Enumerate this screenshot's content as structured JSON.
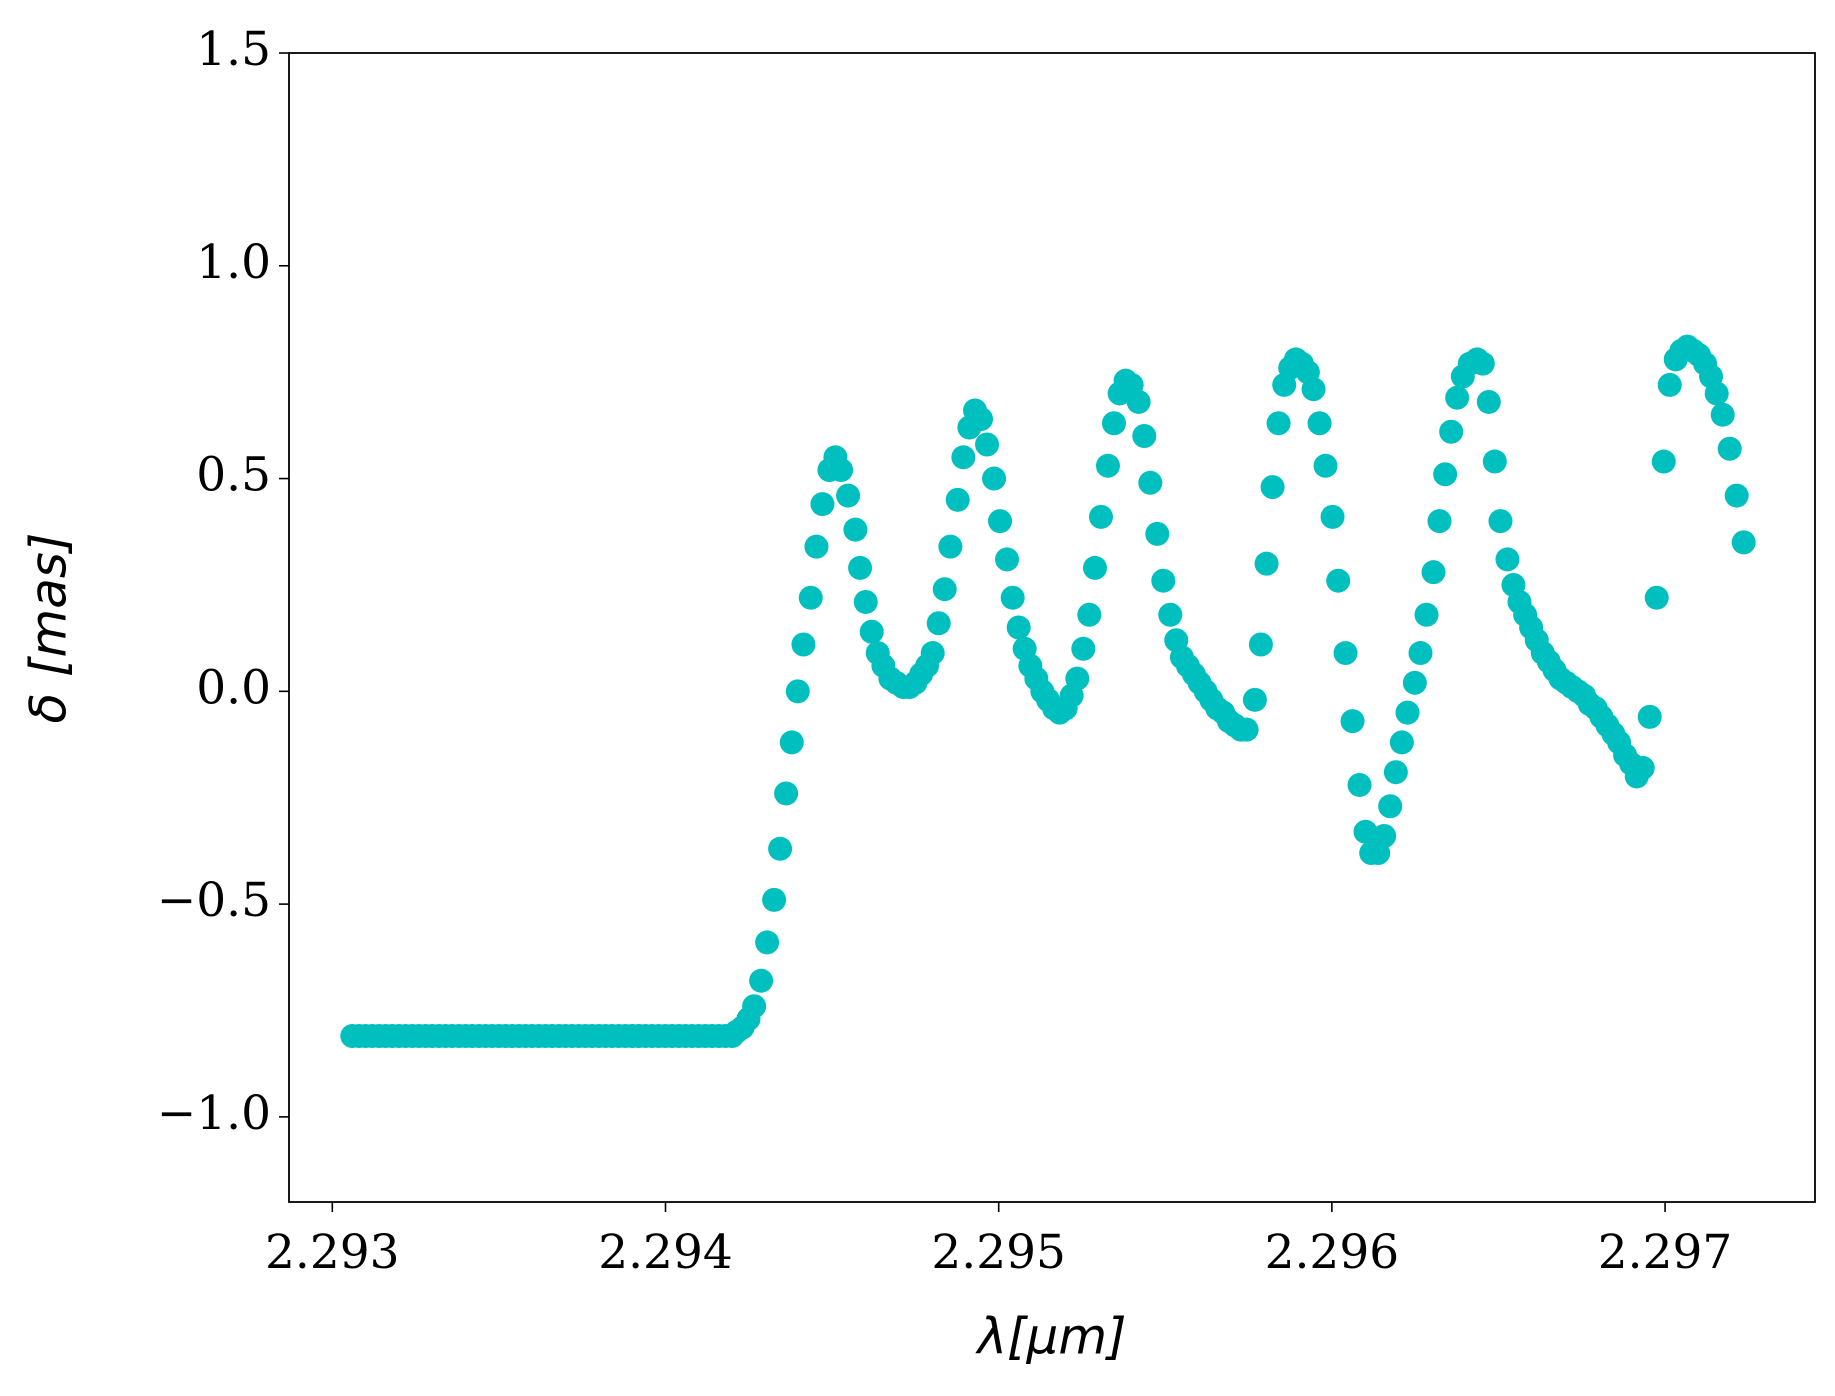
{
  "chart_data": {
    "type": "scatter",
    "xlabel": "λ[μm]",
    "ylabel": "δ [mas]",
    "color": "#00bfbf",
    "xlim": [
      2.29287,
      2.29745
    ],
    "ylim": [
      -1.2,
      1.5
    ],
    "xticks": [
      2.293,
      2.294,
      2.295,
      2.296,
      2.297
    ],
    "yticks": [
      {
        "value": -1.0,
        "label": "−1.0"
      },
      {
        "value": -0.5,
        "label": "−0.5"
      },
      {
        "value": 0.0,
        "label": "0.0"
      },
      0.5,
      {
        "value": 1.0,
        "label": "1.0"
      },
      1.5
    ],
    "grid": false,
    "x": [
      2.29306,
      2.29308,
      2.2931,
      2.29312,
      2.29314,
      2.29316,
      2.29318,
      2.2932,
      2.29322,
      2.29324,
      2.29326,
      2.29328,
      2.2933,
      2.29332,
      2.29334,
      2.29336,
      2.29338,
      2.2934,
      2.29342,
      2.29344,
      2.29346,
      2.29348,
      2.2935,
      2.29352,
      2.29354,
      2.29356,
      2.29358,
      2.2936,
      2.29362,
      2.29364,
      2.29366,
      2.29368,
      2.2937,
      2.29372,
      2.29374,
      2.29376,
      2.29378,
      2.2938,
      2.29382,
      2.29384,
      2.29386,
      2.29388,
      2.2939,
      2.29392,
      2.29394,
      2.29396,
      2.29398,
      2.294,
      2.29402,
      2.29404,
      2.29406,
      2.29408,
      2.2941,
      2.29412,
      2.29414,
      2.29416,
      2.29418,
      2.2942,
      2.294213,
      2.294231,
      2.294249,
      2.294266,
      2.294287,
      2.294305,
      2.294326,
      2.294344,
      2.294362,
      2.294379,
      2.294397,
      2.294414,
      2.294436,
      2.294453,
      2.294471,
      2.294492,
      2.29451,
      2.294527,
      2.294548,
      2.29457,
      2.294584,
      2.294601,
      2.294619,
      2.294637,
      2.294654,
      2.294675,
      2.294693,
      2.294714,
      2.294732,
      2.29475,
      2.294767,
      2.294785,
      2.294802,
      2.29482,
      2.294838,
      2.294855,
      2.294877,
      2.294894,
      2.294912,
      2.294929,
      2.294947,
      2.294965,
      2.294986,
      2.295004,
      2.295025,
      2.295042,
      2.29506,
      2.295078,
      2.295095,
      2.295113,
      2.295131,
      2.295148,
      2.295166,
      2.295183,
      2.295201,
      2.295219,
      2.295236,
      2.295254,
      2.295272,
      2.295289,
      2.295307,
      2.295328,
      2.295346,
      2.295363,
      2.295381,
      2.295399,
      2.29542,
      2.295437,
      2.295455,
      2.295476,
      2.295494,
      2.295515,
      2.295533,
      2.29555,
      2.295568,
      2.295586,
      2.295603,
      2.295621,
      2.295638,
      2.295656,
      2.295674,
      2.295691,
      2.295709,
      2.295727,
      2.295744,
      2.295769,
      2.295787,
      2.295804,
      2.295822,
      2.29584,
      2.295857,
      2.295875,
      2.295892,
      2.29591,
      2.295928,
      2.295945,
      2.295963,
      2.295981,
      2.296002,
      2.296019,
      2.296041,
      2.296062,
      2.296083,
      2.296101,
      2.296118,
      2.296139,
      2.296157,
      2.296175,
      2.296192,
      2.29621,
      2.296227,
      2.296249,
      2.296266,
      2.296284,
      2.296305,
      2.296323,
      2.29634,
      2.296358,
      2.296376,
      2.296393,
      2.296414,
      2.296436,
      2.296453,
      2.296471,
      2.296489,
      2.296506,
      2.296527,
      2.296545,
      2.296563,
      2.29658,
      2.296598,
      2.296615,
      2.296633,
      2.296651,
      2.296668,
      2.296686,
      2.296704,
      2.296721,
      2.296739,
      2.296757,
      2.296774,
      2.296792,
      2.296809,
      2.296827,
      2.296845,
      2.296862,
      2.29688,
      2.296898,
      2.296915,
      2.296933,
      2.296954,
      2.296975,
      2.296996,
      2.297014,
      2.297032,
      2.297049,
      2.297067,
      2.297085,
      2.297102,
      2.29712,
      2.297138,
      2.297155,
      2.297173,
      2.297194,
      2.297215,
      2.297236
    ],
    "values": [
      -0.81,
      -0.81,
      -0.81,
      -0.81,
      -0.81,
      -0.81,
      -0.81,
      -0.81,
      -0.81,
      -0.81,
      -0.81,
      -0.81,
      -0.81,
      -0.81,
      -0.81,
      -0.81,
      -0.81,
      -0.81,
      -0.81,
      -0.81,
      -0.81,
      -0.81,
      -0.81,
      -0.81,
      -0.81,
      -0.81,
      -0.81,
      -0.81,
      -0.81,
      -0.81,
      -0.81,
      -0.81,
      -0.81,
      -0.81,
      -0.81,
      -0.81,
      -0.81,
      -0.81,
      -0.81,
      -0.81,
      -0.81,
      -0.81,
      -0.81,
      -0.81,
      -0.81,
      -0.81,
      -0.81,
      -0.81,
      -0.81,
      -0.81,
      -0.81,
      -0.81,
      -0.81,
      -0.81,
      -0.81,
      -0.81,
      -0.81,
      -0.81,
      -0.8,
      -0.79,
      -0.77,
      -0.74,
      -0.68,
      -0.59,
      -0.49,
      -0.37,
      -0.24,
      -0.12,
      0.0,
      0.11,
      0.22,
      0.34,
      0.44,
      0.52,
      0.55,
      0.52,
      0.46,
      0.38,
      0.29,
      0.21,
      0.14,
      0.09,
      0.06,
      0.03,
      0.02,
      0.01,
      0.01,
      0.02,
      0.04,
      0.06,
      0.09,
      0.16,
      0.24,
      0.34,
      0.45,
      0.55,
      0.62,
      0.66,
      0.64,
      0.58,
      0.5,
      0.4,
      0.31,
      0.22,
      0.15,
      0.1,
      0.06,
      0.03,
      0.0,
      -0.02,
      -0.04,
      -0.05,
      -0.04,
      -0.01,
      0.03,
      0.1,
      0.18,
      0.29,
      0.41,
      0.53,
      0.63,
      0.7,
      0.73,
      0.72,
      0.68,
      0.6,
      0.49,
      0.37,
      0.26,
      0.18,
      0.12,
      0.08,
      0.06,
      0.04,
      0.02,
      0.0,
      -0.02,
      -0.04,
      -0.05,
      -0.07,
      -0.08,
      -0.09,
      -0.09,
      -0.02,
      0.11,
      0.3,
      0.48,
      0.63,
      0.72,
      0.76,
      0.78,
      0.77,
      0.75,
      0.71,
      0.63,
      0.53,
      0.41,
      0.26,
      0.09,
      -0.07,
      -0.22,
      -0.33,
      -0.38,
      -0.38,
      -0.34,
      -0.27,
      -0.19,
      -0.12,
      -0.05,
      0.02,
      0.09,
      0.18,
      0.28,
      0.4,
      0.51,
      0.61,
      0.69,
      0.74,
      0.77,
      0.78,
      0.77,
      0.68,
      0.54,
      0.4,
      0.31,
      0.25,
      0.21,
      0.18,
      0.15,
      0.12,
      0.09,
      0.07,
      0.05,
      0.03,
      0.02,
      0.01,
      0.0,
      -0.01,
      -0.03,
      -0.04,
      -0.06,
      -0.08,
      -0.1,
      -0.12,
      -0.15,
      -0.17,
      -0.2,
      -0.18,
      -0.06,
      0.22,
      0.54,
      0.72,
      0.78,
      0.8,
      0.81,
      0.8,
      0.79,
      0.77,
      0.74,
      0.7,
      0.65,
      0.57,
      0.46,
      0.35
    ]
  }
}
